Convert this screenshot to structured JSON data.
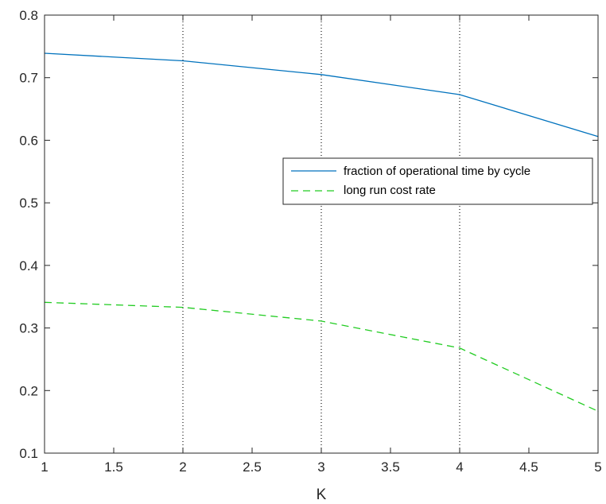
{
  "chart_data": {
    "type": "line",
    "xlabel": "K",
    "ylabel": "",
    "title": "",
    "xlim": [
      1,
      5
    ],
    "ylim": [
      0.1,
      0.8
    ],
    "x_ticks": [
      "1",
      "1.5",
      "2",
      "2.5",
      "3",
      "3.5",
      "4",
      "4.5",
      "5"
    ],
    "y_ticks": [
      "0.1",
      "0.2",
      "0.3",
      "0.4",
      "0.5",
      "0.6",
      "0.7",
      "0.8"
    ],
    "vertical_reference_lines": [
      2,
      3,
      4
    ],
    "grid": false,
    "legend_position": "right",
    "x": [
      1,
      2,
      3,
      4,
      5
    ],
    "series": [
      {
        "name": "fraction of operational time by cycle",
        "values": [
          0.739,
          0.727,
          0.705,
          0.673,
          0.606
        ],
        "color": "#0072BD",
        "style": "solid"
      },
      {
        "name": "long run cost rate",
        "values": [
          0.341,
          0.333,
          0.311,
          0.268,
          0.167
        ],
        "color": "#22CC22",
        "style": "dashed"
      }
    ]
  }
}
